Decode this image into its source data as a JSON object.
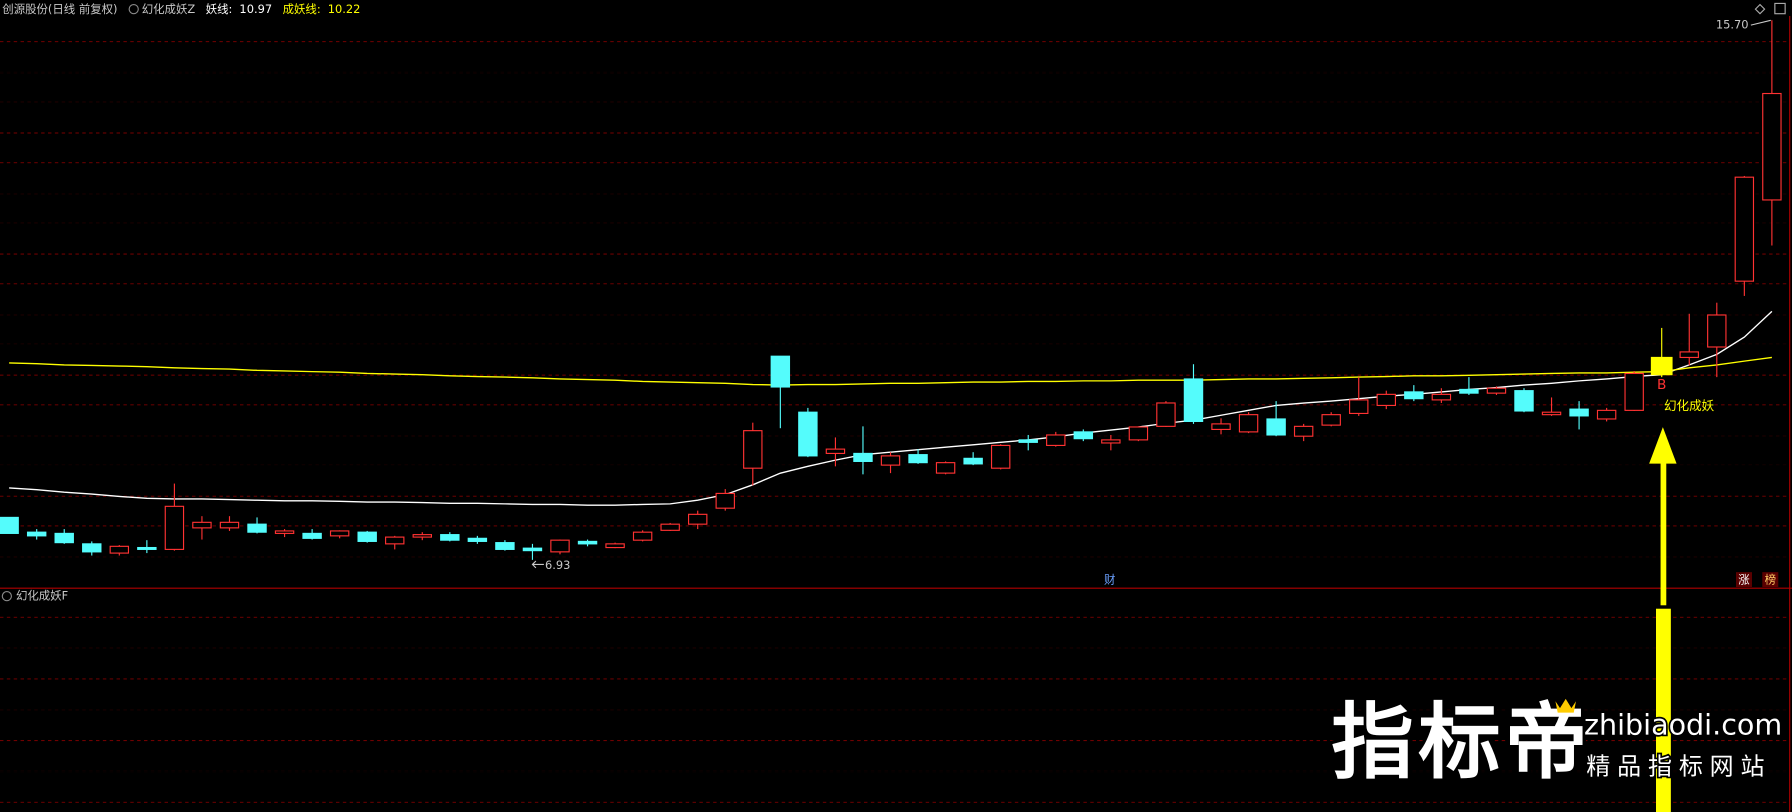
{
  "header": {
    "title": "创源股份(日线 前复权)",
    "indicator": "幻化成妖Z"
  },
  "lower_panel": {
    "title": "幻化成妖F"
  },
  "watermark": {
    "brand": "指标帝",
    "domain": "zhibiaodi.com",
    "slogan": "精品指标网站"
  },
  "chart_data": {
    "type": "candlestick",
    "ylim": [
      6.47,
      16.03
    ],
    "up_color": "#ff3232",
    "down_color": "#54fcfc",
    "signal_color": "#ffff00",
    "open": [
      7.62,
      7.38,
      7.36,
      7.19,
      7.04,
      7.13,
      7.1,
      7.45,
      7.45,
      7.51,
      7.36,
      7.36,
      7.32,
      7.38,
      7.19,
      7.3,
      7.34,
      7.28,
      7.21,
      7.12,
      7.06,
      7.23,
      7.13,
      7.25,
      7.41,
      7.51,
      7.77,
      8.42,
      10.24,
      9.33,
      8.66,
      8.66,
      8.47,
      8.64,
      8.34,
      8.58,
      8.42,
      8.88,
      8.79,
      9.01,
      8.83,
      8.88,
      9.1,
      9.87,
      9.05,
      9.01,
      9.22,
      8.94,
      9.12,
      9.31,
      9.44,
      9.66,
      9.53,
      9.7,
      9.64,
      9.68,
      9.29,
      9.38,
      9.22,
      9.36,
      9.94,
      10.22,
      10.39,
      11.46,
      12.78
    ],
    "high": [
      7.62,
      7.43,
      7.43,
      7.23,
      7.17,
      7.25,
      8.17,
      7.64,
      7.64,
      7.62,
      7.43,
      7.43,
      7.41,
      7.4,
      7.32,
      7.38,
      7.38,
      7.32,
      7.25,
      7.19,
      7.26,
      7.26,
      7.21,
      7.41,
      7.53,
      7.73,
      8.08,
      9.16,
      10.24,
      9.4,
      8.92,
      9.1,
      8.68,
      8.73,
      8.53,
      8.68,
      8.81,
      8.96,
      9.01,
      9.05,
      8.96,
      9.1,
      9.51,
      10.11,
      9.23,
      9.33,
      9.51,
      9.14,
      9.33,
      9.9,
      9.68,
      9.77,
      9.72,
      9.9,
      9.75,
      9.72,
      9.57,
      9.51,
      9.4,
      10.0,
      10.7,
      10.93,
      11.11,
      13.17,
      15.7
    ],
    "low": [
      7.36,
      7.26,
      7.19,
      7.0,
      7.0,
      7.04,
      7.08,
      7.26,
      7.4,
      7.36,
      7.3,
      7.26,
      7.28,
      7.21,
      7.1,
      7.25,
      7.23,
      7.19,
      7.08,
      6.93,
      7.02,
      7.15,
      7.12,
      7.23,
      7.4,
      7.43,
      7.73,
      8.14,
      9.07,
      8.6,
      8.45,
      8.32,
      8.34,
      8.49,
      8.32,
      8.47,
      8.4,
      8.71,
      8.77,
      8.86,
      8.71,
      8.86,
      9.09,
      9.14,
      8.97,
      8.99,
      8.94,
      8.86,
      9.1,
      9.27,
      9.38,
      9.51,
      9.48,
      9.61,
      9.61,
      9.33,
      9.27,
      9.05,
      9.18,
      9.35,
      9.9,
      10.09,
      9.9,
      11.22,
      12.04
    ],
    "close": [
      7.36,
      7.32,
      7.21,
      7.06,
      7.15,
      7.1,
      7.8,
      7.54,
      7.54,
      7.38,
      7.4,
      7.28,
      7.4,
      7.23,
      7.3,
      7.34,
      7.25,
      7.23,
      7.1,
      7.08,
      7.25,
      7.19,
      7.19,
      7.38,
      7.51,
      7.67,
      8.01,
      9.03,
      9.74,
      8.62,
      8.73,
      8.53,
      8.62,
      8.51,
      8.51,
      8.49,
      8.79,
      8.84,
      8.96,
      8.9,
      8.88,
      9.09,
      9.48,
      9.18,
      9.14,
      9.29,
      8.96,
      9.1,
      9.29,
      9.53,
      9.62,
      9.55,
      9.62,
      9.64,
      9.72,
      9.35,
      9.33,
      9.27,
      9.36,
      9.96,
      10.22,
      10.31,
      10.91,
      13.15,
      14.51
    ],
    "series": [
      {
        "name": "妖线:",
        "color": "#ffffff",
        "values": [
          8.1,
          8.07,
          8.03,
          8.0,
          7.96,
          7.93,
          7.92,
          7.92,
          7.91,
          7.9,
          7.89,
          7.89,
          7.88,
          7.87,
          7.87,
          7.86,
          7.85,
          7.85,
          7.84,
          7.83,
          7.83,
          7.82,
          7.82,
          7.83,
          7.84,
          7.9,
          7.99,
          8.15,
          8.34,
          8.45,
          8.55,
          8.64,
          8.68,
          8.72,
          8.76,
          8.8,
          8.84,
          8.88,
          8.93,
          8.99,
          9.04,
          9.09,
          9.15,
          9.2,
          9.28,
          9.36,
          9.44,
          9.48,
          9.51,
          9.55,
          9.59,
          9.62,
          9.66,
          9.7,
          9.73,
          9.77,
          9.8,
          9.84,
          9.87,
          9.91,
          9.94,
          10.1,
          10.27,
          10.55,
          10.97
        ]
      },
      {
        "name": "成妖线:",
        "color": "#ffff00",
        "values": [
          10.13,
          10.12,
          10.1,
          10.09,
          10.08,
          10.07,
          10.05,
          10.04,
          10.03,
          10.01,
          10.0,
          9.99,
          9.98,
          9.96,
          9.95,
          9.94,
          9.92,
          9.91,
          9.9,
          9.89,
          9.87,
          9.86,
          9.85,
          9.83,
          9.82,
          9.81,
          9.8,
          9.78,
          9.77,
          9.78,
          9.78,
          9.79,
          9.8,
          9.8,
          9.81,
          9.82,
          9.82,
          9.83,
          9.83,
          9.84,
          9.84,
          9.85,
          9.85,
          9.85,
          9.86,
          9.87,
          9.87,
          9.88,
          9.89,
          9.9,
          9.91,
          9.92,
          9.92,
          9.93,
          9.94,
          9.95,
          9.96,
          9.97,
          9.97,
          9.98,
          9.99,
          10.05,
          10.1,
          10.16,
          10.22
        ]
      }
    ],
    "annotations": {
      "max_label": "15.70",
      "min_label": "6.93",
      "signal_letter": "B",
      "signal_text": "幻化成妖",
      "finance": "财",
      "rise": "涨",
      "rank": "榜"
    }
  }
}
